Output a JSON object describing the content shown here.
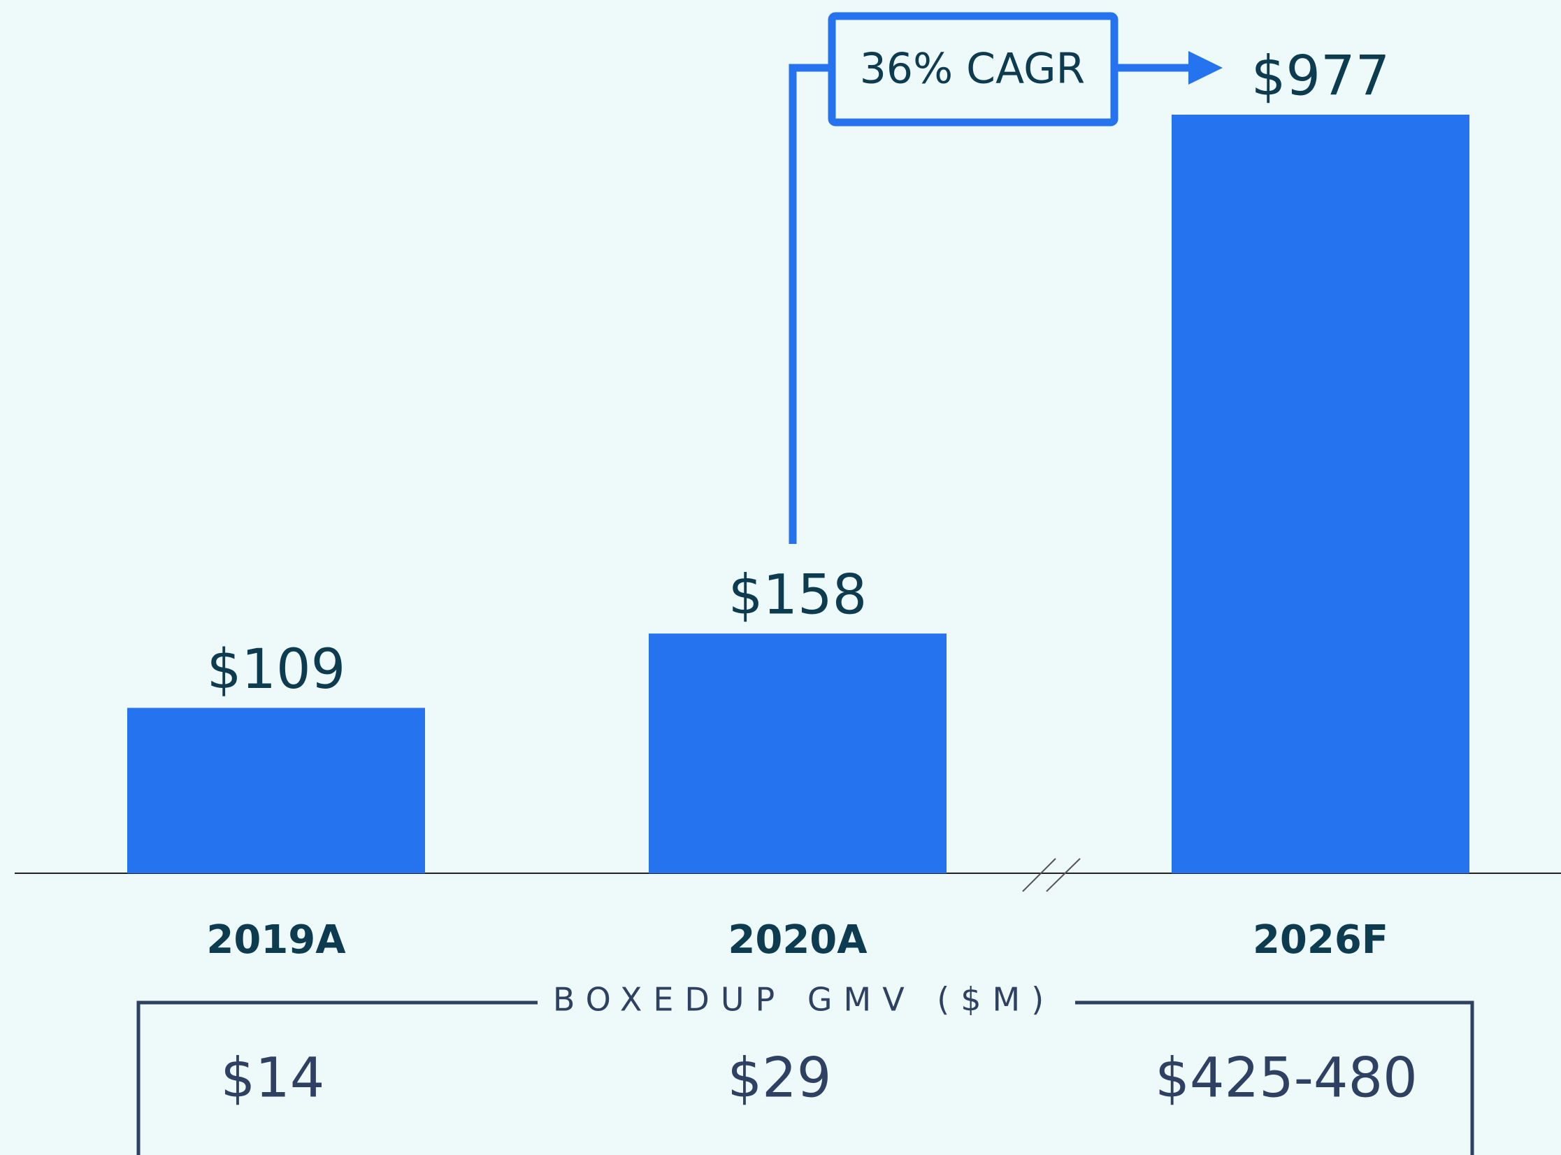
{
  "chart_data": {
    "type": "bar",
    "categories": [
      "2019A",
      "2020A",
      "2026F"
    ],
    "values": [
      109,
      158,
      977
    ],
    "value_labels": [
      "$109",
      "$158",
      "$977"
    ],
    "color": "#2673f0",
    "axis_break": true,
    "annotation": "36% CAGR"
  },
  "table": {
    "title": "BOXEDUP GMV ($M)",
    "values": [
      "$14",
      "$29",
      "$425-480"
    ]
  }
}
